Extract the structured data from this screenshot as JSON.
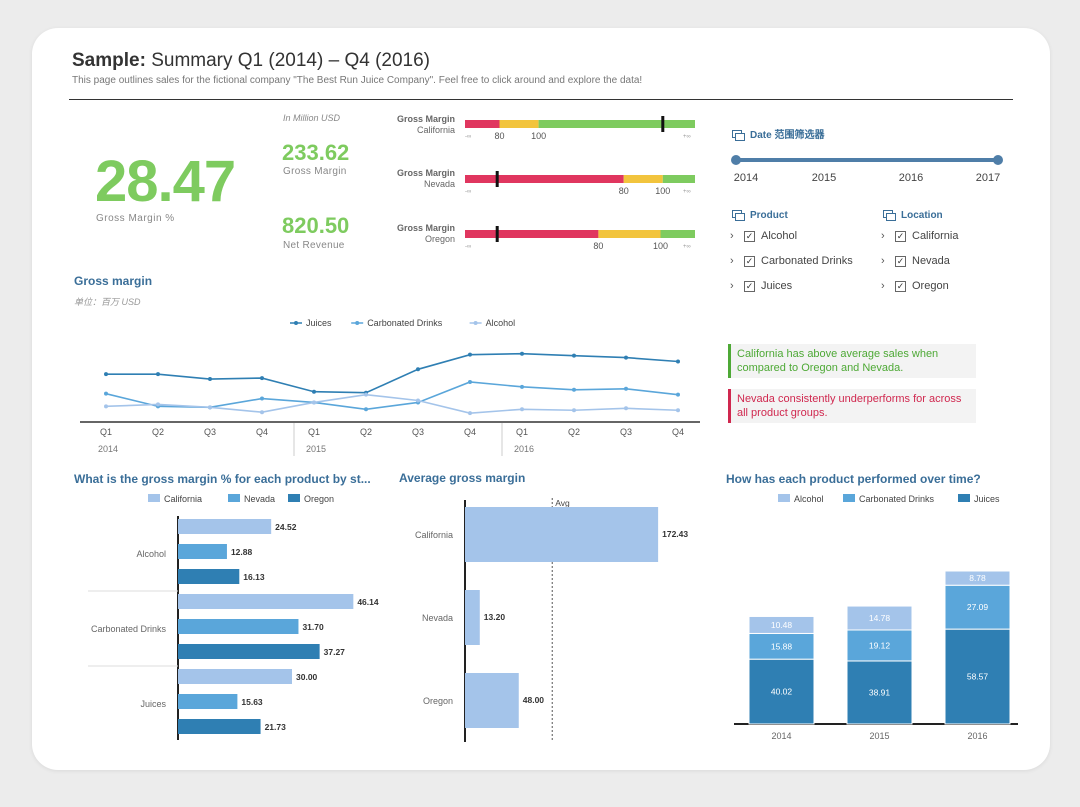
{
  "header": {
    "title_bold": "Sample:",
    "title_rest": "Summary Q1 (2014) – Q4 (2016)",
    "subtitle": "This page outlines sales for the fictional company \"The Best Run Juice Company\". Feel free to click around and explore the data!"
  },
  "kpi": {
    "big_value": "28.47",
    "big_label": "Gross Margin %",
    "unit": "In Million USD",
    "gm_value": "233.62",
    "gm_label": "Gross Margin",
    "nr_value": "820.50",
    "nr_label": "Net Revenue"
  },
  "bullets": [
    {
      "label1": "Gross Margin",
      "label2": "California",
      "marker": 0.86,
      "ticks": [
        "80",
        "100"
      ],
      "seg": [
        0.15,
        0.17,
        0.68
      ],
      "low": "-∞",
      "high": "+∞"
    },
    {
      "label1": "Gross Margin",
      "label2": "Nevada",
      "marker": 0.14,
      "ticks": [
        "80",
        "100"
      ],
      "seg": [
        0.69,
        0.17,
        0.14
      ],
      "low": "-∞",
      "high": "+∞"
    },
    {
      "label1": "Gross Margin",
      "label2": "Oregon",
      "marker": 0.14,
      "ticks": [
        "80",
        "100"
      ],
      "seg": [
        0.58,
        0.27,
        0.15
      ],
      "low": "-∞",
      "high": "+∞"
    }
  ],
  "filters": {
    "date_title": "Date 范围筛选器",
    "years": [
      "2014",
      "2015",
      "2016",
      "2017"
    ],
    "product_title": "Product",
    "products": [
      "Alcohol",
      "Carbonated Drinks",
      "Juices"
    ],
    "location_title": "Location",
    "locations": [
      "California",
      "Nevada",
      "Oregon"
    ]
  },
  "insights": {
    "green": "California has above average sales when compared to Oregon and Nevada.",
    "red": "Nevada consistently underperforms for across all product groups."
  },
  "colors": {
    "green": "#7ecb5f",
    "red": "#e0365f",
    "yellow": "#f2c43d",
    "blue_dark": "#2f7fb3",
    "blue_mid": "#5aa6da",
    "blue_light": "#a4c4ea",
    "title_blue": "#3a6e98"
  },
  "line_chart": {
    "title": "Gross margin",
    "note": "单位：百万 USD"
  },
  "hbar_chart": {
    "title": "What is the gross margin % for each product by st..."
  },
  "avg_chart": {
    "title": "Average gross margin"
  },
  "stack_chart": {
    "title": "How has each product performed over time?"
  },
  "chart_data": [
    {
      "type": "line",
      "categories": [
        "Q1",
        "Q2",
        "Q3",
        "Q4",
        "Q1",
        "Q2",
        "Q3",
        "Q4",
        "Q1",
        "Q2",
        "Q3",
        "Q4"
      ],
      "groups": [
        "2014",
        "2015",
        "2016"
      ],
      "series": [
        {
          "name": "Juices",
          "values": [
            47,
            47,
            42,
            43,
            29,
            28,
            52,
            67,
            68,
            66,
            64,
            60
          ]
        },
        {
          "name": "Carbonated Drinks",
          "values": [
            27,
            14,
            13,
            22,
            18,
            11,
            18,
            39,
            34,
            31,
            32,
            26
          ]
        },
        {
          "name": "Alcohol",
          "values": [
            14,
            16,
            13,
            8,
            18,
            26,
            20,
            7,
            11,
            10,
            12,
            10
          ]
        }
      ],
      "ylim": [
        0,
        80
      ]
    },
    {
      "type": "bar",
      "orientation": "horizontal",
      "categories": [
        "Alcohol",
        "Carbonated Drinks",
        "Juices"
      ],
      "series": [
        {
          "name": "California",
          "values": [
            24.52,
            46.14,
            30.0
          ]
        },
        {
          "name": "Nevada",
          "values": [
            12.88,
            31.7,
            15.63
          ]
        },
        {
          "name": "Oregon",
          "values": [
            16.13,
            37.27,
            21.73
          ]
        }
      ],
      "labels": [
        [
          "24.52",
          "12.88",
          "16.13"
        ],
        [
          "46.14",
          "31.70",
          "37.27"
        ],
        [
          "30.00",
          "15.63",
          "21.73"
        ]
      ]
    },
    {
      "type": "bar",
      "orientation": "horizontal",
      "categories": [
        "California",
        "Nevada",
        "Oregon"
      ],
      "values": [
        172.43,
        13.2,
        48.0
      ],
      "labels": [
        "172.43",
        "13.20",
        "48.00"
      ],
      "avg_label": "Avg",
      "avg": 77.88
    },
    {
      "type": "bar",
      "stacked": true,
      "categories": [
        "2014",
        "2015",
        "2016"
      ],
      "series": [
        {
          "name": "Juices",
          "values": [
            40.02,
            38.91,
            58.57
          ]
        },
        {
          "name": "Carbonated Drinks",
          "values": [
            15.88,
            19.12,
            27.09
          ]
        },
        {
          "name": "Alcohol",
          "values": [
            10.48,
            14.78,
            8.78
          ]
        }
      ],
      "legend": [
        "Alcohol",
        "Carbonated Drinks",
        "Juices"
      ]
    }
  ]
}
